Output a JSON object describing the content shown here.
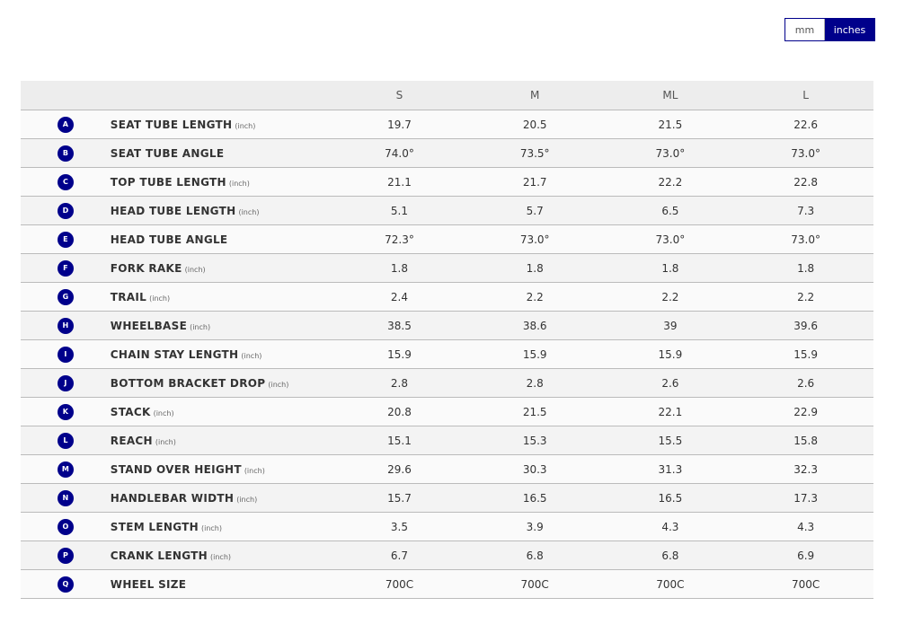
{
  "unit_toggle": {
    "options": [
      "mm",
      "inches"
    ],
    "selected": "inches"
  },
  "accent_color": "#00008b",
  "table": {
    "columns": [
      "S",
      "M",
      "ML",
      "L"
    ],
    "rows": [
      {
        "key": "A",
        "label": "SEAT TUBE LENGTH",
        "unit": "(inch)",
        "values": [
          "19.7",
          "20.5",
          "21.5",
          "22.6"
        ]
      },
      {
        "key": "B",
        "label": "SEAT TUBE ANGLE",
        "unit": "",
        "values": [
          "74.0°",
          "73.5°",
          "73.0°",
          "73.0°"
        ]
      },
      {
        "key": "C",
        "label": "TOP TUBE LENGTH",
        "unit": "(inch)",
        "values": [
          "21.1",
          "21.7",
          "22.2",
          "22.8"
        ]
      },
      {
        "key": "D",
        "label": "HEAD TUBE LENGTH",
        "unit": "(inch)",
        "values": [
          "5.1",
          "5.7",
          "6.5",
          "7.3"
        ]
      },
      {
        "key": "E",
        "label": "HEAD TUBE ANGLE",
        "unit": "",
        "values": [
          "72.3°",
          "73.0°",
          "73.0°",
          "73.0°"
        ]
      },
      {
        "key": "F",
        "label": "FORK RAKE",
        "unit": "(inch)",
        "values": [
          "1.8",
          "1.8",
          "1.8",
          "1.8"
        ]
      },
      {
        "key": "G",
        "label": "TRAIL",
        "unit": "(inch)",
        "values": [
          "2.4",
          "2.2",
          "2.2",
          "2.2"
        ]
      },
      {
        "key": "H",
        "label": "WHEELBASE",
        "unit": "(inch)",
        "values": [
          "38.5",
          "38.6",
          "39",
          "39.6"
        ]
      },
      {
        "key": "I",
        "label": "CHAIN STAY LENGTH",
        "unit": "(inch)",
        "values": [
          "15.9",
          "15.9",
          "15.9",
          "15.9"
        ]
      },
      {
        "key": "J",
        "label": "BOTTOM BRACKET DROP",
        "unit": "(inch)",
        "values": [
          "2.8",
          "2.8",
          "2.6",
          "2.6"
        ]
      },
      {
        "key": "K",
        "label": "STACK",
        "unit": "(inch)",
        "values": [
          "20.8",
          "21.5",
          "22.1",
          "22.9"
        ]
      },
      {
        "key": "L",
        "label": "REACH",
        "unit": "(inch)",
        "values": [
          "15.1",
          "15.3",
          "15.5",
          "15.8"
        ]
      },
      {
        "key": "M",
        "label": "STAND OVER HEIGHT",
        "unit": "(inch)",
        "values": [
          "29.6",
          "30.3",
          "31.3",
          "32.3"
        ]
      },
      {
        "key": "N",
        "label": "HANDLEBAR WIDTH",
        "unit": "(inch)",
        "values": [
          "15.7",
          "16.5",
          "16.5",
          "17.3"
        ]
      },
      {
        "key": "O",
        "label": "STEM LENGTH",
        "unit": "(inch)",
        "values": [
          "3.5",
          "3.9",
          "4.3",
          "4.3"
        ]
      },
      {
        "key": "P",
        "label": "CRANK LENGTH",
        "unit": "(inch)",
        "values": [
          "6.7",
          "6.8",
          "6.8",
          "6.9"
        ]
      },
      {
        "key": "Q",
        "label": "WHEEL SIZE",
        "unit": "",
        "values": [
          "700C",
          "700C",
          "700C",
          "700C"
        ]
      }
    ]
  }
}
